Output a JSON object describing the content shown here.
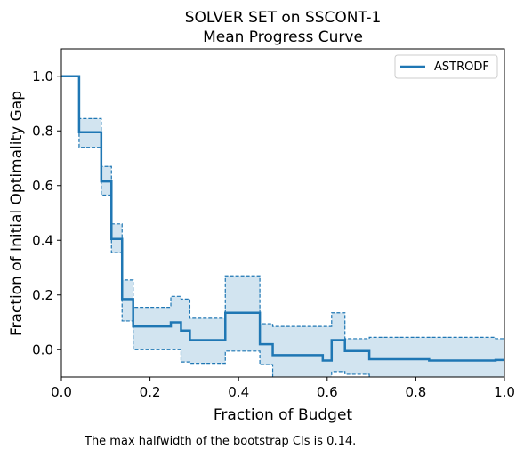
{
  "chart_data": {
    "type": "line",
    "title": [
      "SOLVER SET on SSCONT-1",
      "Mean Progress Curve"
    ],
    "xlabel": "Fraction of Budget",
    "ylabel": "Fraction of Initial Optimality Gap",
    "xlim": [
      0.0,
      1.0
    ],
    "ylim": [
      -0.1,
      1.1
    ],
    "xticks": [
      "0.0",
      "0.2",
      "0.4",
      "0.6",
      "0.8",
      "1.0"
    ],
    "yticks": [
      "0.0",
      "0.2",
      "0.4",
      "0.6",
      "0.8",
      "1.0"
    ],
    "legend_position": "top-right",
    "grid": false,
    "colors": {
      "series": "#1f77b4",
      "band": "#1f77b4"
    },
    "series": [
      {
        "name": "ASTRODF",
        "step": "post",
        "x": [
          0.0,
          0.04,
          0.09,
          0.113,
          0.137,
          0.162,
          0.247,
          0.27,
          0.29,
          0.37,
          0.448,
          0.477,
          0.59,
          0.61,
          0.64,
          0.695,
          0.83,
          0.98,
          1.0
        ],
        "y": [
          1.0,
          0.795,
          0.615,
          0.405,
          0.185,
          0.085,
          0.1,
          0.07,
          0.035,
          0.135,
          0.02,
          -0.02,
          -0.04,
          0.035,
          -0.005,
          -0.035,
          -0.04,
          -0.038,
          -0.038
        ],
        "ci_lower": [
          1.0,
          0.74,
          0.565,
          0.355,
          0.105,
          0.0,
          0.0,
          -0.045,
          -0.05,
          -0.005,
          -0.055,
          -0.11,
          -0.11,
          -0.08,
          -0.09,
          -0.11,
          -0.11,
          -0.11,
          -0.11
        ],
        "ci_upper": [
          1.0,
          0.845,
          0.67,
          0.46,
          0.255,
          0.155,
          0.195,
          0.185,
          0.115,
          0.27,
          0.095,
          0.085,
          0.085,
          0.135,
          0.04,
          0.045,
          0.045,
          0.04,
          0.04
        ]
      }
    ],
    "annotation": "The max halfwidth of the bootstrap CIs is 0.14."
  }
}
